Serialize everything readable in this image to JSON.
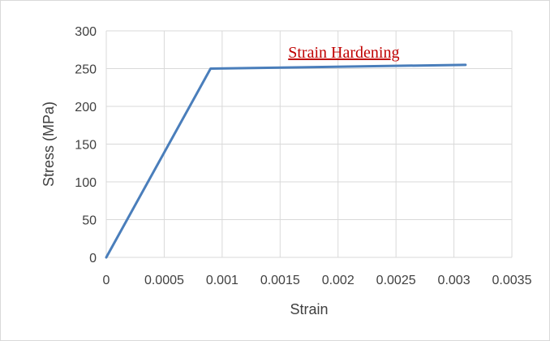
{
  "chart_data": {
    "type": "line",
    "title": "",
    "xlabel": "Strain",
    "ylabel": "Stress (MPa)",
    "xlim": [
      0,
      0.0035
    ],
    "ylim": [
      0,
      300
    ],
    "x_ticks": [
      "0",
      "0.0005",
      "0.001",
      "0.0015",
      "0.002",
      "0.0025",
      "0.003",
      "0.0035"
    ],
    "y_ticks": [
      "0",
      "50",
      "100",
      "150",
      "200",
      "250",
      "300"
    ],
    "grid": true,
    "series": [
      {
        "x": [
          0,
          0.0009,
          0.0031
        ],
        "y": [
          0,
          250,
          255
        ],
        "color": "#4a7ebb"
      }
    ],
    "annotations": [
      {
        "text": "Strain Hardening",
        "x": 0.00205,
        "y": 272,
        "color": "#c00000"
      }
    ]
  }
}
